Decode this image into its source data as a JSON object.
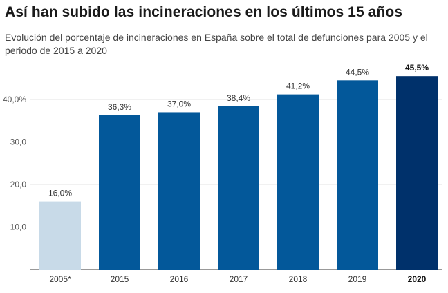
{
  "chart_data": {
    "type": "bar",
    "title": "Así han subido las incineraciones en los últimos 15 años",
    "subtitle": "Evolución del porcentaje de incineraciones en España sobre el total de defunciones para 2005 y el periodo de 2015 a 2020",
    "categories": [
      "2005*",
      "2015",
      "2016",
      "2017",
      "2018",
      "2019",
      "2020"
    ],
    "values": [
      16.0,
      36.3,
      37.0,
      38.4,
      41.2,
      44.5,
      45.5
    ],
    "value_labels": [
      "16,0%",
      "36,3%",
      "37,0%",
      "38,4%",
      "41,2%",
      "44,5%",
      "45,5%"
    ],
    "highlight": [
      false,
      false,
      false,
      false,
      false,
      false,
      true
    ],
    "y_ticks": [
      10,
      20,
      30,
      40
    ],
    "y_tick_labels": [
      "10,0",
      "20,0",
      "30,0",
      "40,0%"
    ],
    "ylim": [
      0,
      46
    ],
    "grid": true,
    "colors": {
      "first": "#c8dae8",
      "middle": "#03589a",
      "last": "#00316b",
      "grid": "#e3e3e3",
      "axis": "#333333"
    }
  }
}
